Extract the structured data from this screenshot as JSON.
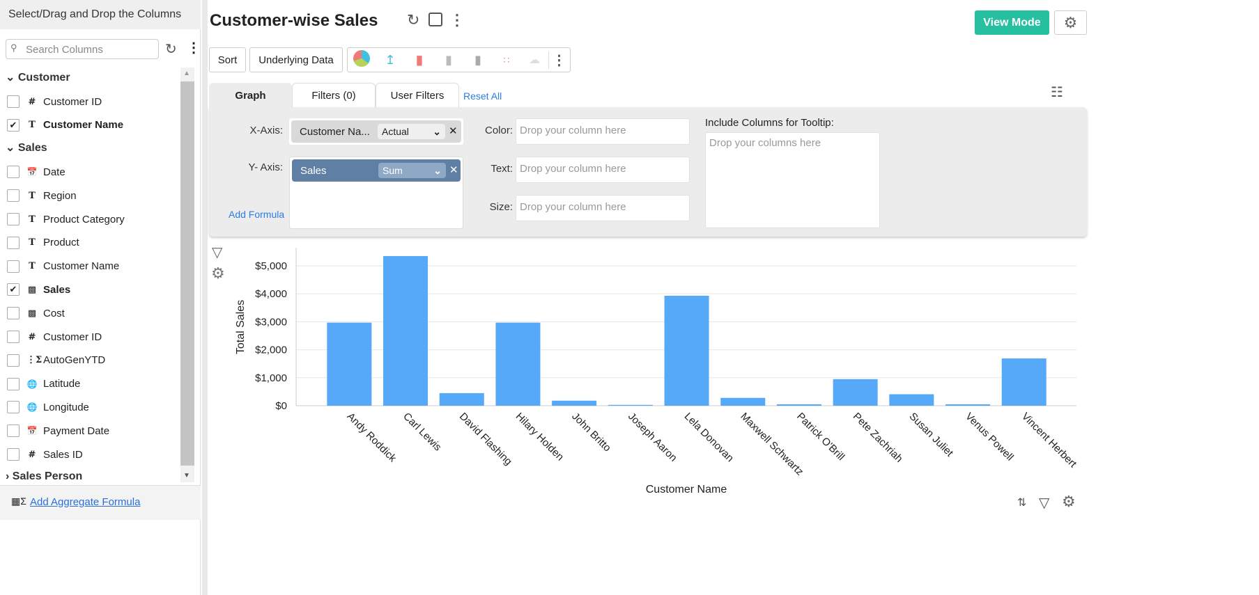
{
  "sidebar": {
    "title": "Select/Drag and Drop the Columns",
    "search_placeholder": "Search Columns",
    "groups": [
      {
        "name": "Customer",
        "expanded": true
      },
      {
        "name": "Sales",
        "expanded": true
      },
      {
        "name": "Sales Person",
        "expanded": false
      }
    ],
    "items": [
      {
        "label": "Customer ID",
        "icon": "#",
        "checked": false
      },
      {
        "label": "Customer Name",
        "icon": "T",
        "checked": true
      },
      {
        "label": "Date",
        "icon": "calendar",
        "checked": false
      },
      {
        "label": "Region",
        "icon": "T",
        "checked": false
      },
      {
        "label": "Product Category",
        "icon": "T",
        "checked": false
      },
      {
        "label": "Product",
        "icon": "T",
        "checked": false
      },
      {
        "label": "Customer Name",
        "icon": "T",
        "checked": false
      },
      {
        "label": "Sales",
        "icon": "currency",
        "checked": true
      },
      {
        "label": "Cost",
        "icon": "currency",
        "checked": false
      },
      {
        "label": "Customer ID",
        "icon": "#",
        "checked": false
      },
      {
        "label": "AutoGenYTD",
        "icon": "formula",
        "checked": false
      },
      {
        "label": "Latitude",
        "icon": "globe",
        "checked": false
      },
      {
        "label": "Longitude",
        "icon": "globe",
        "checked": false
      },
      {
        "label": "Payment Date",
        "icon": "calendar",
        "checked": false
      },
      {
        "label": "Sales ID",
        "icon": "#",
        "checked": false
      }
    ],
    "footer_link": "Add Aggregate Formula"
  },
  "header": {
    "title": "Customer-wise Sales",
    "view_mode": "View Mode"
  },
  "toolbar": {
    "sort": "Sort",
    "underlying": "Underlying Data"
  },
  "tabs": {
    "graph": "Graph",
    "filters": "Filters (0)",
    "user_filters": "User Filters",
    "reset_all": "Reset All"
  },
  "config": {
    "x_label": "X-Axis:",
    "x_value": "Customer Na...",
    "x_func": "Actual",
    "y_label": "Y- Axis:",
    "y_value": "Sales",
    "y_func": "Sum",
    "add_formula": "Add Formula",
    "color_label": "Color:",
    "text_label": "Text:",
    "size_label": "Size:",
    "drop_placeholder": "Drop your column here",
    "tooltip_label": "Include Columns for Tooltip:",
    "tooltip_placeholder": "Drop your columns here"
  },
  "chart_data": {
    "type": "bar",
    "xlabel": "Customer Name",
    "ylabel": "Total Sales",
    "ylim": [
      0,
      5600
    ],
    "yticks": [
      0,
      1000,
      2000,
      3000,
      4000,
      5000
    ],
    "ytick_labels": [
      "$0",
      "$1,000",
      "$2,000",
      "$3,000",
      "$4,000",
      "$5,000"
    ],
    "grid": true,
    "color": "#56a8f8",
    "categories": [
      "Andy Roddick",
      "Carl Lewis",
      "David Flashing",
      "Hilary Holden",
      "John Britto",
      "Joseph Aaron",
      "Lela Donovan",
      "Maxwell Schwartz",
      "Patrick O'Brill",
      "Pete Zachriah",
      "Susan Juliet",
      "Venus Powell",
      "Vincent Herbert"
    ],
    "values": [
      2970,
      5350,
      450,
      2970,
      180,
      30,
      3930,
      280,
      50,
      950,
      410,
      50,
      1690
    ]
  }
}
